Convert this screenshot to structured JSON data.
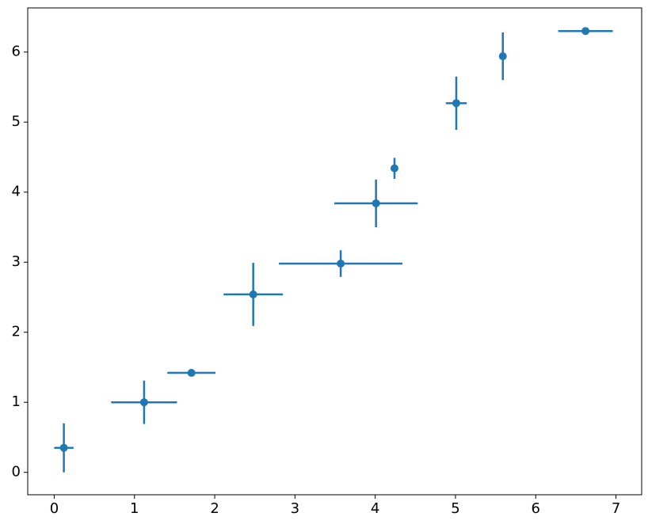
{
  "chart_data": {
    "type": "scatter",
    "x": [
      0.12,
      1.12,
      1.71,
      2.48,
      3.57,
      4.01,
      4.24,
      5.01,
      5.59,
      6.62
    ],
    "series": [
      {
        "color": "#1f77b4",
        "values": [
          0.35,
          1.0,
          1.42,
          2.54,
          2.98,
          3.84,
          4.34,
          5.27,
          5.94,
          6.3
        ],
        "xerr": [
          0.12,
          0.41,
          0.3,
          0.37,
          0.77,
          0.52,
          0,
          0.13,
          0,
          0.34
        ],
        "yerr": [
          0.35,
          0.31,
          0,
          0.45,
          0.19,
          0.34,
          0.15,
          0.38,
          0.34,
          0
        ]
      }
    ],
    "xlim": [
      -0.33,
      7.32
    ],
    "ylim": [
      -0.32,
      6.63
    ],
    "xticks": [
      0,
      1,
      2,
      3,
      4,
      5,
      6,
      7
    ],
    "yticks": [
      0,
      1,
      2,
      3,
      4,
      5,
      6
    ]
  }
}
